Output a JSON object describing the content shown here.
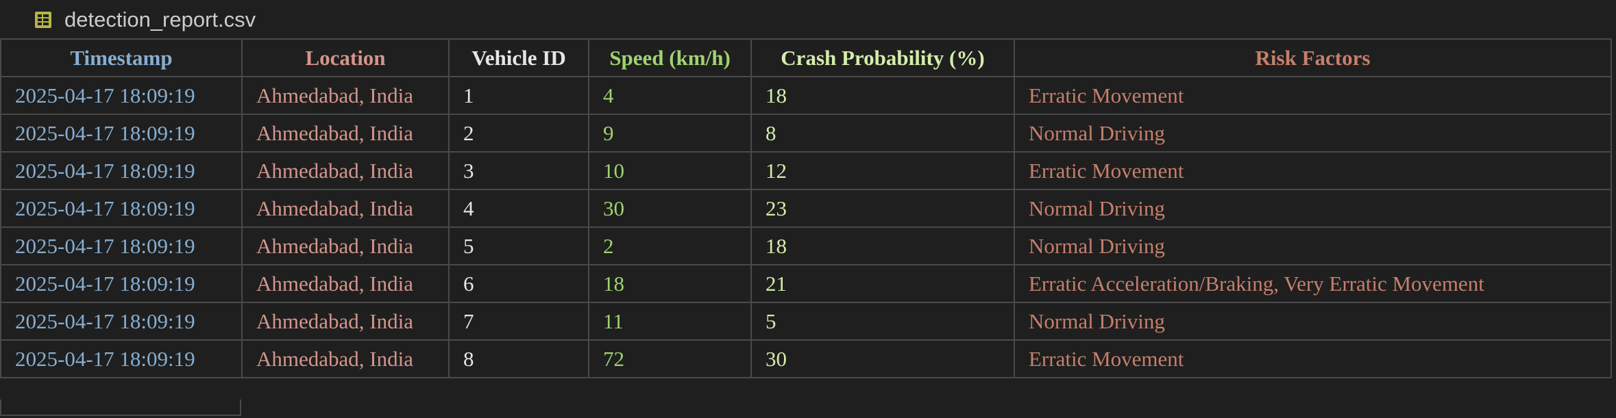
{
  "file": {
    "name": "detection_report.csv",
    "icon": "spreadsheet-icon",
    "icon_color": "#b5b545"
  },
  "colors": {
    "background": "#1f1f1f",
    "grid": "#4a4a4a",
    "col_timestamp": "#86aed2",
    "col_location": "#d4958c",
    "col_vehicle": "#e7e7e7",
    "col_speed": "#9fd36f",
    "col_crash": "#d4edaa",
    "col_risk": "#c57f6b"
  },
  "table": {
    "headers": [
      "Timestamp",
      "Location",
      "Vehicle ID",
      "Speed (km/h)",
      "Crash Probability (%)",
      "Risk Factors"
    ],
    "rows": [
      [
        "2025-04-17 18:09:19",
        "Ahmedabad, India",
        "1",
        "4",
        "18",
        "Erratic Movement"
      ],
      [
        "2025-04-17 18:09:19",
        "Ahmedabad, India",
        "2",
        "9",
        "8",
        "Normal Driving"
      ],
      [
        "2025-04-17 18:09:19",
        "Ahmedabad, India",
        "3",
        "10",
        "12",
        "Erratic Movement"
      ],
      [
        "2025-04-17 18:09:19",
        "Ahmedabad, India",
        "4",
        "30",
        "23",
        "Normal Driving"
      ],
      [
        "2025-04-17 18:09:19",
        "Ahmedabad, India",
        "5",
        "2",
        "18",
        "Normal Driving"
      ],
      [
        "2025-04-17 18:09:19",
        "Ahmedabad, India",
        "6",
        "18",
        "21",
        "Erratic Acceleration/Braking, Very Erratic Movement"
      ],
      [
        "2025-04-17 18:09:19",
        "Ahmedabad, India",
        "7",
        "11",
        "5",
        "Normal Driving"
      ],
      [
        "2025-04-17 18:09:19",
        "Ahmedabad, India",
        "8",
        "72",
        "30",
        "Erratic Movement"
      ]
    ]
  }
}
